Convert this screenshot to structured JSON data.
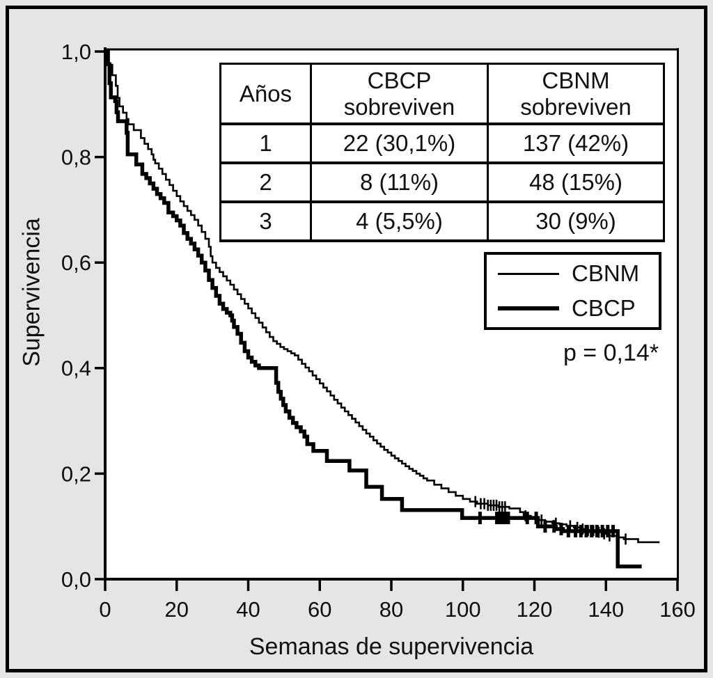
{
  "figure": {
    "background_color": "#e5e5e5",
    "plot_background": "#ffffff",
    "line_color": "#000000"
  },
  "chart_data": {
    "type": "line",
    "subtype": "kaplan-meier-step-survival",
    "title": "",
    "xlabel": "Semanas de supervivencia",
    "ylabel": "Supervivencia",
    "xlim": [
      0,
      160
    ],
    "ylim": [
      0.0,
      1.0
    ],
    "grid": "off",
    "annotation": "p = 0,14*",
    "x_ticks": [
      {
        "label": "0",
        "value": 0
      },
      {
        "label": "20",
        "value": 20
      },
      {
        "label": "40",
        "value": 40
      },
      {
        "label": "60",
        "value": 60
      },
      {
        "label": "80",
        "value": 80
      },
      {
        "label": "100",
        "value": 100
      },
      {
        "label": "120",
        "value": 120
      },
      {
        "label": "140",
        "value": 140
      },
      {
        "label": "160",
        "value": 160
      }
    ],
    "y_ticks": [
      {
        "label": "1,0",
        "value": 1.0
      },
      {
        "label": "0,8",
        "value": 0.8
      },
      {
        "label": "0,6",
        "value": 0.6
      },
      {
        "label": "0,4",
        "value": 0.4
      },
      {
        "label": "0,2",
        "value": 0.2
      },
      {
        "label": "0,0",
        "value": 0.0
      }
    ],
    "legend": {
      "position": "right-middle",
      "entries": [
        {
          "name": "CBNM",
          "style": "thin"
        },
        {
          "name": "CBCP",
          "style": "thick"
        }
      ]
    },
    "table": {
      "headers": [
        [
          "Años",
          ""
        ],
        [
          "CBCP",
          "sobreviven"
        ],
        [
          "CBNM",
          "sobreviven"
        ]
      ],
      "rows": [
        [
          "1",
          "22 (30,1%)",
          "137 (42%)"
        ],
        [
          "2",
          "8 (11%)",
          "48 (15%)"
        ],
        [
          "3",
          "4 (5,5%)",
          "30 (9%)"
        ]
      ]
    },
    "series": [
      {
        "name": "CBNM",
        "line_width": "thin",
        "steps": [
          [
            0,
            1.0
          ],
          [
            1,
            0.975
          ],
          [
            2,
            0.955
          ],
          [
            3,
            0.935
          ],
          [
            3.5,
            0.912
          ],
          [
            4,
            0.896
          ],
          [
            5,
            0.884
          ],
          [
            6,
            0.872
          ],
          [
            6.5,
            0.862
          ],
          [
            8,
            0.851
          ],
          [
            10,
            0.836
          ],
          [
            11,
            0.825
          ],
          [
            12,
            0.815
          ],
          [
            13,
            0.805
          ],
          [
            13.5,
            0.795
          ],
          [
            14,
            0.788
          ],
          [
            15,
            0.778
          ],
          [
            16,
            0.768
          ],
          [
            17,
            0.757
          ],
          [
            18,
            0.747
          ],
          [
            19,
            0.736
          ],
          [
            20,
            0.726
          ],
          [
            21,
            0.716
          ],
          [
            22,
            0.707
          ],
          [
            23,
            0.698
          ],
          [
            24,
            0.69
          ],
          [
            25,
            0.681
          ],
          [
            26,
            0.67
          ],
          [
            27,
            0.658
          ],
          [
            28,
            0.645
          ],
          [
            29,
            0.63
          ],
          [
            29.5,
            0.612
          ],
          [
            30,
            0.6
          ],
          [
            31,
            0.59
          ],
          [
            32,
            0.582
          ],
          [
            33,
            0.574
          ],
          [
            34,
            0.566
          ],
          [
            35,
            0.558
          ],
          [
            36,
            0.549
          ],
          [
            37,
            0.54
          ],
          [
            38,
            0.531
          ],
          [
            39,
            0.522
          ],
          [
            40,
            0.513
          ],
          [
            41,
            0.504
          ],
          [
            42,
            0.495
          ],
          [
            43,
            0.486
          ],
          [
            44,
            0.477
          ],
          [
            45,
            0.468
          ],
          [
            46,
            0.459
          ],
          [
            47,
            0.451
          ],
          [
            48,
            0.446
          ],
          [
            49,
            0.44
          ],
          [
            50,
            0.436
          ],
          [
            51,
            0.432
          ],
          [
            52,
            0.428
          ],
          [
            53,
            0.424
          ],
          [
            54,
            0.416
          ],
          [
            55,
            0.408
          ],
          [
            56,
            0.401
          ],
          [
            57,
            0.394
          ],
          [
            58,
            0.386
          ],
          [
            59,
            0.379
          ],
          [
            60,
            0.371
          ],
          [
            61,
            0.363
          ],
          [
            62,
            0.356
          ],
          [
            63,
            0.348
          ],
          [
            64,
            0.34
          ],
          [
            65,
            0.333
          ],
          [
            66,
            0.325
          ],
          [
            67,
            0.318
          ],
          [
            68,
            0.311
          ],
          [
            69,
            0.304
          ],
          [
            70,
            0.297
          ],
          [
            71,
            0.29
          ],
          [
            72,
            0.283
          ],
          [
            73,
            0.276
          ],
          [
            74,
            0.27
          ],
          [
            75,
            0.263
          ],
          [
            76,
            0.257
          ],
          [
            77,
            0.251
          ],
          [
            78,
            0.245
          ],
          [
            79,
            0.24
          ],
          [
            80,
            0.234
          ],
          [
            81,
            0.229
          ],
          [
            82,
            0.224
          ],
          [
            83,
            0.219
          ],
          [
            84,
            0.214
          ],
          [
            85,
            0.209
          ],
          [
            86,
            0.205
          ],
          [
            87,
            0.2
          ],
          [
            88,
            0.196
          ],
          [
            89,
            0.191
          ],
          [
            90,
            0.187
          ],
          [
            92,
            0.179
          ],
          [
            94,
            0.172
          ],
          [
            96,
            0.165
          ],
          [
            98,
            0.158
          ],
          [
            100,
            0.152
          ],
          [
            102,
            0.147
          ],
          [
            104,
            0.143
          ],
          [
            107,
            0.14
          ],
          [
            110,
            0.137
          ],
          [
            113,
            0.134
          ],
          [
            116,
            0.127
          ],
          [
            117,
            0.12
          ],
          [
            119,
            0.116
          ],
          [
            121,
            0.112
          ],
          [
            123,
            0.109
          ],
          [
            125,
            0.106
          ],
          [
            127,
            0.104
          ],
          [
            129,
            0.101
          ],
          [
            131,
            0.098
          ],
          [
            133,
            0.095
          ],
          [
            135,
            0.092
          ],
          [
            137,
            0.089
          ],
          [
            139,
            0.086
          ],
          [
            141,
            0.082
          ],
          [
            143,
            0.079
          ],
          [
            145,
            0.076
          ],
          [
            149,
            0.07
          ],
          [
            155,
            0.07
          ]
        ],
        "censor_weeks": [
          103.5,
          105,
          106,
          107,
          107.8,
          108.6,
          109.4,
          110.2,
          111,
          111.8,
          117.5,
          122,
          126,
          130,
          132,
          133.5,
          135,
          136.5,
          138,
          139.5,
          141,
          145.5
        ]
      },
      {
        "name": "CBCP",
        "line_width": "thick",
        "steps": [
          [
            0,
            1.0
          ],
          [
            0.8,
            0.976
          ],
          [
            1.2,
            0.94
          ],
          [
            1.6,
            0.913
          ],
          [
            2.8,
            0.906
          ],
          [
            3.2,
            0.885
          ],
          [
            3.6,
            0.868
          ],
          [
            6.0,
            0.846
          ],
          [
            6.3,
            0.805
          ],
          [
            8.7,
            0.786
          ],
          [
            10.4,
            0.768
          ],
          [
            11.5,
            0.76
          ],
          [
            12.5,
            0.75
          ],
          [
            13.5,
            0.74
          ],
          [
            14.5,
            0.73
          ],
          [
            15.5,
            0.722
          ],
          [
            16.5,
            0.713
          ],
          [
            17.7,
            0.695
          ],
          [
            19,
            0.688
          ],
          [
            20,
            0.68
          ],
          [
            21,
            0.67
          ],
          [
            22,
            0.656
          ],
          [
            23,
            0.645
          ],
          [
            24,
            0.636
          ],
          [
            25,
            0.625
          ],
          [
            26,
            0.613
          ],
          [
            27,
            0.6
          ],
          [
            28,
            0.585
          ],
          [
            29,
            0.567
          ],
          [
            30,
            0.552
          ],
          [
            31,
            0.537
          ],
          [
            32,
            0.522
          ],
          [
            33,
            0.512
          ],
          [
            34,
            0.505
          ],
          [
            35,
            0.5
          ],
          [
            35.5,
            0.49
          ],
          [
            36,
            0.478
          ],
          [
            37,
            0.465
          ],
          [
            38,
            0.448
          ],
          [
            39,
            0.432
          ],
          [
            40,
            0.42
          ],
          [
            41,
            0.412
          ],
          [
            42,
            0.405
          ],
          [
            43,
            0.4
          ],
          [
            47.8,
            0.372
          ],
          [
            48.4,
            0.355
          ],
          [
            49.1,
            0.342
          ],
          [
            49.8,
            0.33
          ],
          [
            50.5,
            0.318
          ],
          [
            51.5,
            0.306
          ],
          [
            52.5,
            0.296
          ],
          [
            53.5,
            0.288
          ],
          [
            54.7,
            0.28
          ],
          [
            55.7,
            0.27
          ],
          [
            56.5,
            0.256
          ],
          [
            58.2,
            0.243
          ],
          [
            62,
            0.224
          ],
          [
            68.3,
            0.206
          ],
          [
            73,
            0.175
          ],
          [
            77.4,
            0.152
          ],
          [
            83,
            0.131
          ],
          [
            99.8,
            0.116
          ],
          [
            121,
            0.1
          ],
          [
            126,
            0.095
          ],
          [
            128,
            0.091
          ],
          [
            143.3,
            0.024
          ],
          [
            150,
            0.024
          ]
        ],
        "censor_weeks": [
          104.8,
          109.5,
          110.3,
          111.1,
          111.9,
          112.7,
          118,
          120.5,
          123,
          125.5,
          127.5,
          129.5,
          131.5,
          133,
          134.5,
          136,
          137.5,
          139,
          140.5,
          142
        ]
      }
    ]
  }
}
